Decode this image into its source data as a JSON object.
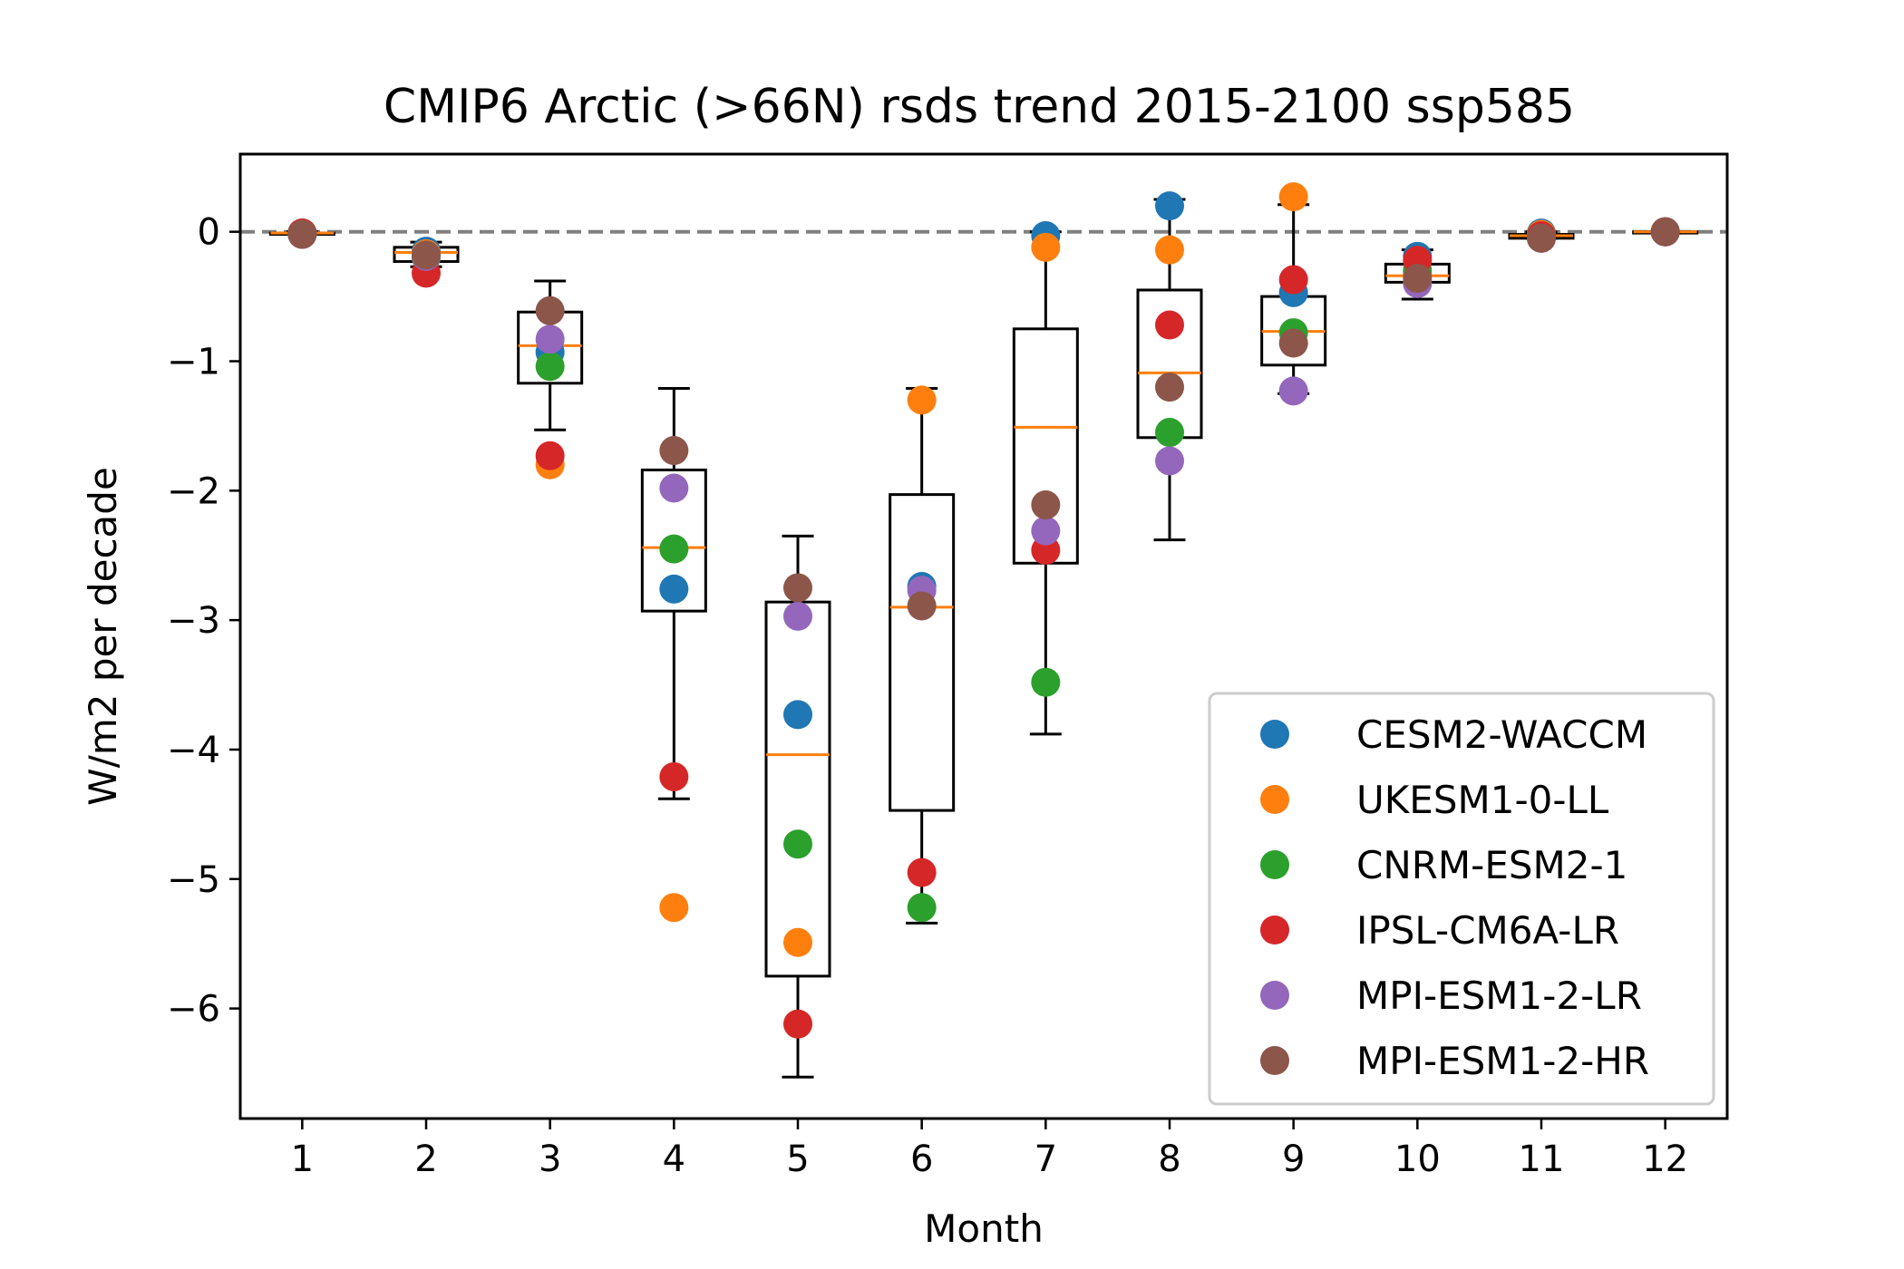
{
  "chart_data": {
    "type": "box-scatter",
    "title": "CMIP6 Arctic (>66N) rsds trend 2015-2100 ssp585",
    "xlabel": "Month",
    "ylabel": "W/m2 per decade",
    "xlim": [
      0.5,
      12.5
    ],
    "ylim": [
      -6.85,
      0.6
    ],
    "x_ticks": [
      1,
      2,
      3,
      4,
      5,
      6,
      7,
      8,
      9,
      10,
      11,
      12
    ],
    "y_ticks": [
      0,
      -1,
      -2,
      -3,
      -4,
      -5,
      -6
    ],
    "y_tick_labels": [
      "0",
      "−1",
      "−2",
      "−3",
      "−4",
      "−5",
      "−6"
    ],
    "zero_line": {
      "y": 0,
      "style": "dashed",
      "color": "#808080"
    },
    "legend_position": "lower-right",
    "grid": false,
    "box_color": "#000000",
    "median_color": "#ff7f0e",
    "boxes": [
      {
        "month": 1,
        "whislo": -0.02,
        "q1": -0.02,
        "med": -0.01,
        "q3": -0.01,
        "whishi": 0.0
      },
      {
        "month": 2,
        "whislo": -0.27,
        "q1": -0.23,
        "med": -0.16,
        "q3": -0.12,
        "whishi": -0.08
      },
      {
        "month": 3,
        "whislo": -1.53,
        "q1": -1.17,
        "med": -0.88,
        "q3": -0.62,
        "whishi": -0.38
      },
      {
        "month": 4,
        "whislo": -4.38,
        "q1": -2.93,
        "med": -2.44,
        "q3": -1.84,
        "whishi": -1.21
      },
      {
        "month": 5,
        "whislo": -6.53,
        "q1": -5.75,
        "med": -4.04,
        "q3": -2.86,
        "whishi": -2.35
      },
      {
        "month": 6,
        "whislo": -5.34,
        "q1": -4.47,
        "med": -2.9,
        "q3": -2.03,
        "whishi": -1.21
      },
      {
        "month": 7,
        "whislo": -3.88,
        "q1": -2.56,
        "med": -1.51,
        "q3": -0.75,
        "whishi": 0.0
      },
      {
        "month": 8,
        "whislo": -2.38,
        "q1": -1.59,
        "med": -1.09,
        "q3": -0.45,
        "whishi": 0.25
      },
      {
        "month": 9,
        "whislo": -1.25,
        "q1": -1.03,
        "med": -0.77,
        "q3": -0.5,
        "whishi": 0.21
      },
      {
        "month": 10,
        "whislo": -0.52,
        "q1": -0.39,
        "med": -0.34,
        "q3": -0.25,
        "whishi": -0.14
      },
      {
        "month": 11,
        "whislo": -0.05,
        "q1": -0.05,
        "med": -0.03,
        "q3": -0.02,
        "whishi": 0.0
      },
      {
        "month": 12,
        "whislo": -0.01,
        "q1": -0.01,
        "med": 0.0,
        "q3": 0.0,
        "whishi": 0.0
      }
    ],
    "series": [
      {
        "name": "CESM2-WACCM",
        "color": "#1f77b4",
        "values": [
          -0.01,
          -0.15,
          -0.93,
          -2.76,
          -3.73,
          -2.74,
          -0.03,
          0.2,
          -0.47,
          -0.19,
          -0.01,
          0.0
        ]
      },
      {
        "name": "UKESM1-0-LL",
        "color": "#ff7f0e",
        "values": [
          -0.01,
          -0.17,
          -1.8,
          -5.22,
          -5.49,
          -1.3,
          -0.12,
          -0.14,
          0.27,
          -0.33,
          -0.02,
          0.0
        ]
      },
      {
        "name": "CNRM-ESM2-1",
        "color": "#2ca02c",
        "values": [
          -0.01,
          -0.2,
          -1.04,
          -2.45,
          -4.73,
          -5.22,
          -3.48,
          -1.55,
          -0.78,
          -0.3,
          -0.03,
          0.0
        ]
      },
      {
        "name": "IPSL-CM6A-LR",
        "color": "#d62728",
        "values": [
          -0.01,
          -0.32,
          -1.73,
          -4.21,
          -6.12,
          -4.95,
          -2.46,
          -0.72,
          -0.37,
          -0.22,
          -0.03,
          0.0
        ]
      },
      {
        "name": "MPI-ESM1-2-LR",
        "color": "#9467bd",
        "values": [
          -0.02,
          -0.19,
          -0.83,
          -1.98,
          -2.97,
          -2.77,
          -2.31,
          -1.77,
          -1.23,
          -0.4,
          -0.05,
          0.0
        ]
      },
      {
        "name": "MPI-ESM1-2-HR",
        "color": "#8c564b",
        "values": [
          -0.02,
          -0.18,
          -0.61,
          -1.69,
          -2.75,
          -2.89,
          -2.11,
          -1.2,
          -0.86,
          -0.36,
          -0.05,
          0.0
        ]
      }
    ]
  }
}
